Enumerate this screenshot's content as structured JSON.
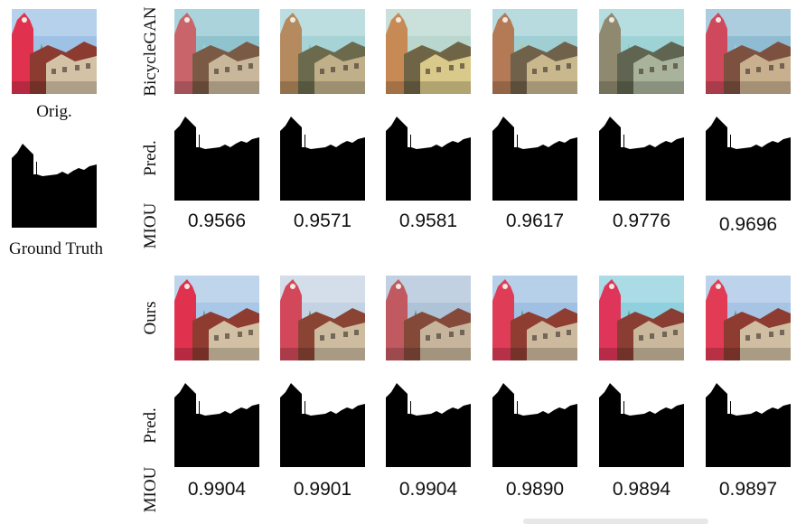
{
  "left": {
    "orig_caption": "Orig.",
    "gt_caption": "Ground Truth"
  },
  "sections": [
    {
      "method_label": "BicycleGAN",
      "pred_label": "Pred.",
      "miou_label": "MIOU",
      "scores": [
        "0.9566",
        "0.9571",
        "0.9581",
        "0.9617",
        "0.9776",
        "0.9696"
      ],
      "palettes": [
        {
          "sky": "#8fc4cf",
          "tower": "#c9646b",
          "roof": "#7a5a45",
          "wall": "#c8b79a",
          "accent": "#9fd2d8"
        },
        {
          "sky": "#a6d3d6",
          "tower": "#b48a5e",
          "roof": "#6b6a4c",
          "wall": "#c0b089",
          "accent": "#7fbfc6"
        },
        {
          "sky": "#b9d6cf",
          "tower": "#c78a55",
          "roof": "#6f6446",
          "wall": "#d9c98a",
          "accent": "#e8d56a"
        },
        {
          "sky": "#9fcfd3",
          "tower": "#b47a56",
          "roof": "#70614a",
          "wall": "#c9b88e",
          "accent": "#d6b95b"
        },
        {
          "sky": "#9ed3d6",
          "tower": "#8f8a6f",
          "roof": "#5f6550",
          "wall": "#a9b39c",
          "accent": "#7fcbd0"
        },
        {
          "sky": "#8fbcd3",
          "tower": "#d0485c",
          "roof": "#7d5140",
          "wall": "#c8b08f",
          "accent": "#a6cadb"
        }
      ]
    },
    {
      "method_label": "Ours",
      "pred_label": "Pred.",
      "miou_label": "MIOU",
      "scores": [
        "0.9904",
        "0.9901",
        "0.9904",
        "0.9890",
        "0.9894",
        "0.9897"
      ],
      "palettes": [
        {
          "sky": "#a9c7e6",
          "tower": "#e0324f",
          "roof": "#8e3b30",
          "wall": "#d2c0a4",
          "accent": "#5e9a8a"
        },
        {
          "sky": "#c4d3e3",
          "tower": "#d2485a",
          "roof": "#8a4434",
          "wall": "#cdbca0",
          "accent": "#6f9a8b"
        },
        {
          "sky": "#aec2d8",
          "tower": "#c05a60",
          "roof": "#85493a",
          "wall": "#c6b59c",
          "accent": "#5f8f80"
        },
        {
          "sky": "#9fc0e2",
          "tower": "#df3c57",
          "roof": "#8f3d31",
          "wall": "#cdb99d",
          "accent": "#5b9a88"
        },
        {
          "sky": "#8fd0de",
          "tower": "#e0355a",
          "roof": "#8a3e33",
          "wall": "#cab89d",
          "accent": "#5aa290"
        },
        {
          "sky": "#a7c4e4",
          "tower": "#e23b55",
          "roof": "#8e3c31",
          "wall": "#d0bea2",
          "accent": "#5f9c89"
        }
      ]
    }
  ],
  "orig_palette": {
    "sky": "#9ec2e6",
    "tower": "#e0324f",
    "roof": "#8b3b30",
    "wall": "#d4c2a6",
    "accent": "#5e9a8a"
  }
}
